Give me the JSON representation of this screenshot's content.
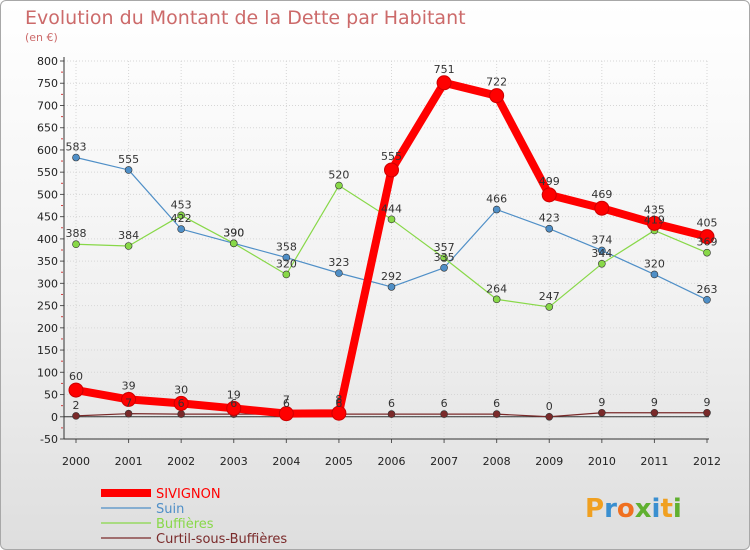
{
  "chart_data": {
    "type": "line",
    "title": "Evolution du Montant de la Dette par Habitant",
    "subtitle": "(en €)",
    "xlabel": "",
    "ylabel": "",
    "x": [
      "2000",
      "2001",
      "2002",
      "2003",
      "2004",
      "2005",
      "2006",
      "2007",
      "2008",
      "2009",
      "2010",
      "2011",
      "2012"
    ],
    "ylim": [
      -50,
      800
    ],
    "yticks": [
      -50,
      0,
      50,
      100,
      150,
      200,
      250,
      300,
      350,
      400,
      450,
      500,
      550,
      600,
      650,
      700,
      750,
      800
    ],
    "grid": true,
    "legend_position": "bottom-left",
    "series": [
      {
        "name": "SIVIGNON",
        "color": "#ff0000",
        "values": [
          60,
          39,
          30,
          19,
          7,
          8,
          555,
          751,
          722,
          499,
          469,
          435,
          405
        ]
      },
      {
        "name": "Suin",
        "color": "#4f8fc7",
        "values": [
          583,
          555,
          422,
          390,
          358,
          323,
          292,
          335,
          466,
          423,
          374,
          320,
          263
        ]
      },
      {
        "name": "Buffières",
        "color": "#88d848",
        "values": [
          388,
          384,
          453,
          390,
          320,
          520,
          444,
          357,
          264,
          247,
          344,
          419,
          369
        ]
      },
      {
        "name": "Curtil-sous-Buffières",
        "color": "#7a2a2a",
        "values": [
          2,
          7,
          6,
          6,
          6,
          6,
          6,
          6,
          6,
          0,
          9,
          9,
          9
        ]
      }
    ]
  },
  "logo": {
    "text": "Proxiti"
  }
}
